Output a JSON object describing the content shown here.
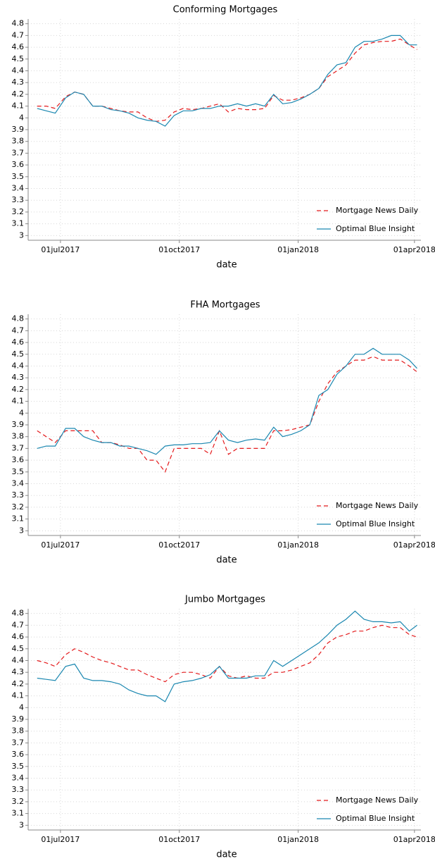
{
  "chart_data": [
    {
      "type": "line",
      "title": "Conforming Mortgages",
      "xlabel": "date",
      "x": [
        "2017-06-13",
        "2017-06-20",
        "2017-06-27",
        "2017-07-05",
        "2017-07-12",
        "2017-07-19",
        "2017-07-26",
        "2017-08-02",
        "2017-08-09",
        "2017-08-16",
        "2017-08-23",
        "2017-08-30",
        "2017-09-06",
        "2017-09-13",
        "2017-09-20",
        "2017-09-27",
        "2017-10-04",
        "2017-10-11",
        "2017-10-18",
        "2017-10-25",
        "2017-11-01",
        "2017-11-08",
        "2017-11-15",
        "2017-11-22",
        "2017-11-29",
        "2017-12-06",
        "2017-12-13",
        "2017-12-20",
        "2017-12-27",
        "2018-01-03",
        "2018-01-10",
        "2018-01-17",
        "2018-01-24",
        "2018-01-31",
        "2018-02-07",
        "2018-02-14",
        "2018-02-21",
        "2018-02-28",
        "2018-03-07",
        "2018-03-14",
        "2018-03-21",
        "2018-03-28",
        "2018-04-03"
      ],
      "series": [
        {
          "name": "Mortgage News Daily",
          "color": "#e41a1c",
          "dash": "dashed",
          "values": [
            4.1,
            4.1,
            4.08,
            4.18,
            4.22,
            4.2,
            4.1,
            4.1,
            4.08,
            4.06,
            4.05,
            4.05,
            4.0,
            3.97,
            3.98,
            4.05,
            4.08,
            4.07,
            4.08,
            4.1,
            4.12,
            4.05,
            4.08,
            4.07,
            4.07,
            4.08,
            4.19,
            4.15,
            4.15,
            4.17,
            4.2,
            4.25,
            4.35,
            4.4,
            4.45,
            4.55,
            4.62,
            4.64,
            4.65,
            4.65,
            4.67,
            4.62,
            4.58
          ]
        },
        {
          "name": "Optimal Blue Insight",
          "color": "#1a87b0",
          "dash": "solid",
          "values": [
            4.08,
            4.06,
            4.04,
            4.17,
            4.22,
            4.2,
            4.1,
            4.1,
            4.07,
            4.06,
            4.04,
            4.0,
            3.98,
            3.97,
            3.93,
            4.02,
            4.06,
            4.06,
            4.08,
            4.08,
            4.1,
            4.1,
            4.12,
            4.1,
            4.12,
            4.1,
            4.2,
            4.12,
            4.13,
            4.16,
            4.2,
            4.25,
            4.37,
            4.45,
            4.47,
            4.6,
            4.65,
            4.65,
            4.67,
            4.7,
            4.7,
            4.62,
            4.62
          ]
        }
      ],
      "xlim": [
        "2017-06-06",
        "2018-04-06"
      ],
      "xticks": [
        {
          "value": "2017-07-01",
          "label": "01jul2017"
        },
        {
          "value": "2017-10-01",
          "label": "01oct2017"
        },
        {
          "value": "2018-01-01",
          "label": "01jan2018"
        },
        {
          "value": "2018-04-01",
          "label": "01apr2018"
        }
      ],
      "ylim": [
        2.96,
        4.84
      ],
      "yticks": [
        3,
        3.1,
        3.2,
        3.3,
        3.4,
        3.5,
        3.6,
        3.7,
        3.8,
        3.9,
        4,
        4.1,
        4.2,
        4.3,
        4.4,
        4.5,
        4.6,
        4.7,
        4.8
      ],
      "grid": true,
      "legend": "lower right"
    },
    {
      "type": "line",
      "title": "FHA Mortgages",
      "xlabel": "date",
      "x": [
        "2017-06-13",
        "2017-06-20",
        "2017-06-27",
        "2017-07-05",
        "2017-07-12",
        "2017-07-19",
        "2017-07-26",
        "2017-08-02",
        "2017-08-09",
        "2017-08-16",
        "2017-08-23",
        "2017-08-30",
        "2017-09-06",
        "2017-09-13",
        "2017-09-20",
        "2017-09-27",
        "2017-10-04",
        "2017-10-11",
        "2017-10-18",
        "2017-10-25",
        "2017-11-01",
        "2017-11-08",
        "2017-11-15",
        "2017-11-22",
        "2017-11-29",
        "2017-12-06",
        "2017-12-13",
        "2017-12-20",
        "2017-12-27",
        "2018-01-03",
        "2018-01-10",
        "2018-01-17",
        "2018-01-24",
        "2018-01-31",
        "2018-02-07",
        "2018-02-14",
        "2018-02-21",
        "2018-02-28",
        "2018-03-07",
        "2018-03-14",
        "2018-03-21",
        "2018-03-28",
        "2018-04-03"
      ],
      "series": [
        {
          "name": "Mortgage News Daily",
          "color": "#e41a1c",
          "dash": "dashed",
          "values": [
            3.85,
            3.8,
            3.75,
            3.85,
            3.85,
            3.85,
            3.85,
            3.75,
            3.75,
            3.73,
            3.7,
            3.7,
            3.6,
            3.6,
            3.5,
            3.7,
            3.7,
            3.7,
            3.7,
            3.65,
            3.85,
            3.65,
            3.7,
            3.7,
            3.7,
            3.7,
            3.85,
            3.85,
            3.86,
            3.88,
            3.9,
            4.1,
            4.25,
            4.35,
            4.4,
            4.45,
            4.45,
            4.48,
            4.45,
            4.45,
            4.45,
            4.4,
            4.35
          ]
        },
        {
          "name": "Optimal Blue Insight",
          "color": "#1a87b0",
          "dash": "solid",
          "values": [
            3.7,
            3.72,
            3.72,
            3.87,
            3.87,
            3.8,
            3.77,
            3.75,
            3.75,
            3.72,
            3.72,
            3.7,
            3.68,
            3.65,
            3.72,
            3.73,
            3.73,
            3.74,
            3.74,
            3.75,
            3.85,
            3.77,
            3.75,
            3.77,
            3.78,
            3.77,
            3.88,
            3.8,
            3.82,
            3.85,
            3.9,
            4.15,
            4.2,
            4.33,
            4.4,
            4.5,
            4.5,
            4.55,
            4.5,
            4.5,
            4.5,
            4.45,
            4.38
          ]
        }
      ],
      "xlim": [
        "2017-06-06",
        "2018-04-06"
      ],
      "xticks": [
        {
          "value": "2017-07-01",
          "label": "01jul2017"
        },
        {
          "value": "2017-10-01",
          "label": "01oct2017"
        },
        {
          "value": "2018-01-01",
          "label": "01jan2018"
        },
        {
          "value": "2018-04-01",
          "label": "01apr2018"
        }
      ],
      "ylim": [
        2.96,
        4.84
      ],
      "yticks": [
        3,
        3.1,
        3.2,
        3.3,
        3.4,
        3.5,
        3.6,
        3.7,
        3.8,
        3.9,
        4,
        4.1,
        4.2,
        4.3,
        4.4,
        4.5,
        4.6,
        4.7,
        4.8
      ],
      "grid": true,
      "legend": "lower right"
    },
    {
      "type": "line",
      "title": "Jumbo Mortgages",
      "xlabel": "date",
      "x": [
        "2017-06-13",
        "2017-06-20",
        "2017-06-27",
        "2017-07-05",
        "2017-07-12",
        "2017-07-19",
        "2017-07-26",
        "2017-08-02",
        "2017-08-09",
        "2017-08-16",
        "2017-08-23",
        "2017-08-30",
        "2017-09-06",
        "2017-09-13",
        "2017-09-20",
        "2017-09-27",
        "2017-10-04",
        "2017-10-11",
        "2017-10-18",
        "2017-10-25",
        "2017-11-01",
        "2017-11-08",
        "2017-11-15",
        "2017-11-22",
        "2017-11-29",
        "2017-12-06",
        "2017-12-13",
        "2017-12-20",
        "2017-12-27",
        "2018-01-03",
        "2018-01-10",
        "2018-01-17",
        "2018-01-24",
        "2018-01-31",
        "2018-02-07",
        "2018-02-14",
        "2018-02-21",
        "2018-02-28",
        "2018-03-07",
        "2018-03-14",
        "2018-03-21",
        "2018-03-28",
        "2018-04-03"
      ],
      "series": [
        {
          "name": "Mortgage News Daily",
          "color": "#e41a1c",
          "dash": "dashed",
          "values": [
            4.4,
            4.38,
            4.35,
            4.45,
            4.5,
            4.47,
            4.43,
            4.4,
            4.38,
            4.35,
            4.32,
            4.32,
            4.28,
            4.25,
            4.22,
            4.28,
            4.3,
            4.3,
            4.28,
            4.25,
            4.35,
            4.27,
            4.25,
            4.27,
            4.25,
            4.25,
            4.3,
            4.3,
            4.32,
            4.35,
            4.38,
            4.45,
            4.55,
            4.6,
            4.62,
            4.65,
            4.65,
            4.68,
            4.7,
            4.68,
            4.68,
            4.62,
            4.6
          ]
        },
        {
          "name": "Optimal Blue Insight",
          "color": "#1a87b0",
          "dash": "solid",
          "values": [
            4.25,
            4.24,
            4.23,
            4.35,
            4.37,
            4.25,
            4.23,
            4.23,
            4.22,
            4.2,
            4.15,
            4.12,
            4.1,
            4.1,
            4.05,
            4.2,
            4.22,
            4.23,
            4.25,
            4.28,
            4.35,
            4.25,
            4.25,
            4.25,
            4.27,
            4.27,
            4.4,
            4.35,
            4.4,
            4.45,
            4.5,
            4.55,
            4.62,
            4.7,
            4.75,
            4.82,
            4.75,
            4.73,
            4.73,
            4.72,
            4.73,
            4.65,
            4.7
          ]
        }
      ],
      "xlim": [
        "2017-06-06",
        "2018-04-06"
      ],
      "xticks": [
        {
          "value": "2017-07-01",
          "label": "01jul2017"
        },
        {
          "value": "2017-10-01",
          "label": "01oct2017"
        },
        {
          "value": "2018-01-01",
          "label": "01jan2018"
        },
        {
          "value": "2018-04-01",
          "label": "01apr2018"
        }
      ],
      "ylim": [
        2.96,
        4.84
      ],
      "yticks": [
        3,
        3.1,
        3.2,
        3.3,
        3.4,
        3.5,
        3.6,
        3.7,
        3.8,
        3.9,
        4,
        4.1,
        4.2,
        4.3,
        4.4,
        4.5,
        4.6,
        4.7,
        4.8
      ],
      "grid": true,
      "legend": "lower right"
    }
  ]
}
